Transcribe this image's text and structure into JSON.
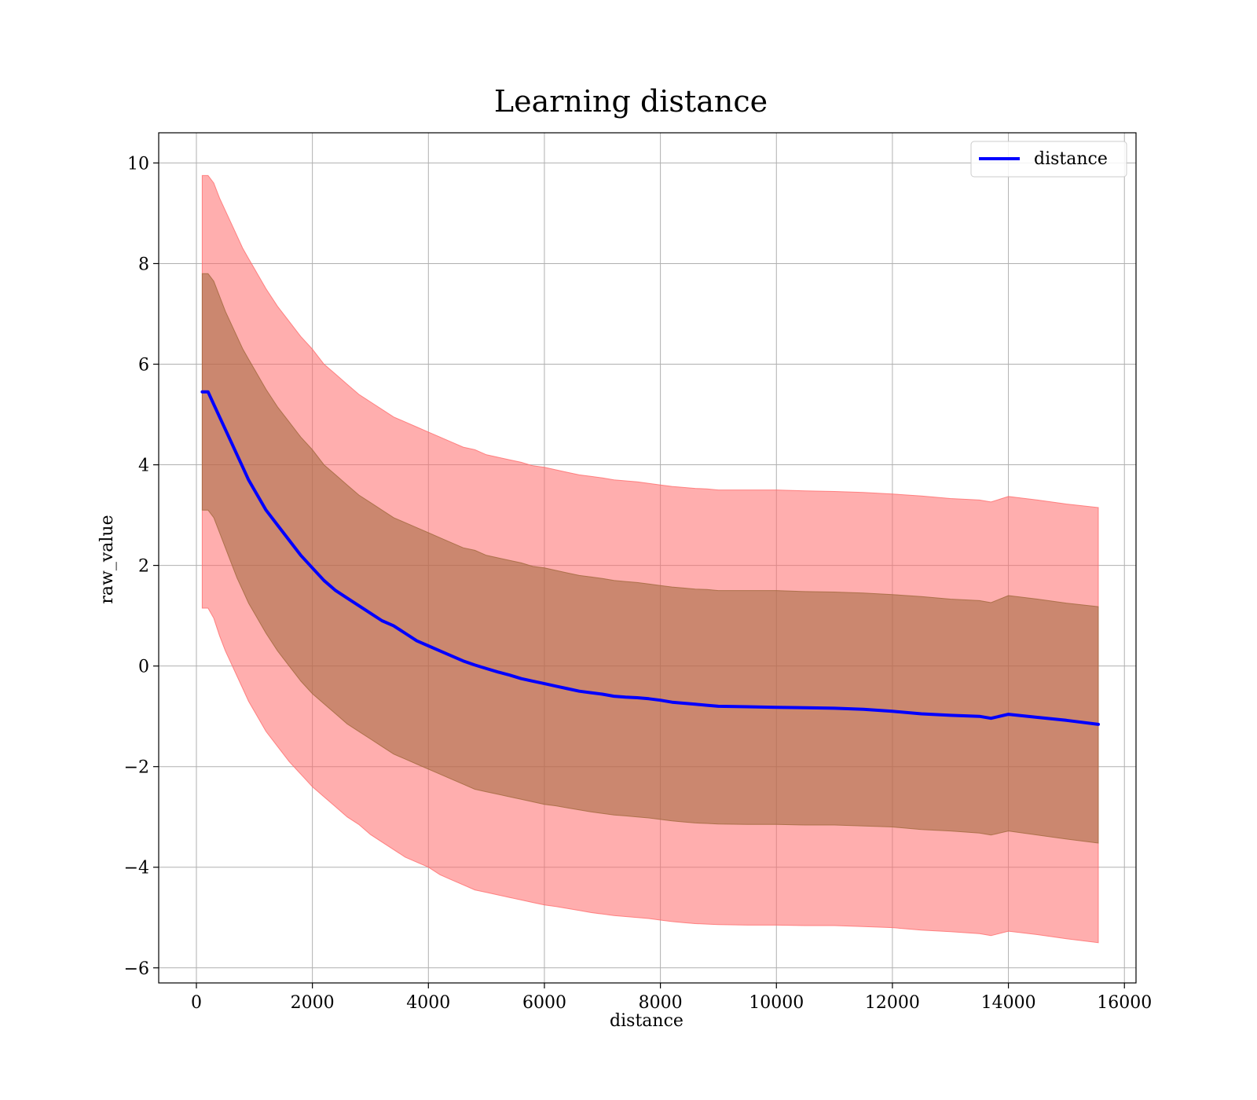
{
  "chart_data": {
    "type": "line",
    "title": "Learning distance",
    "xlabel": "distance",
    "ylabel": "raw_value",
    "xlim": [
      -650,
      16200
    ],
    "ylim": [
      -6.3,
      10.6
    ],
    "xticks": [
      0,
      2000,
      4000,
      6000,
      8000,
      10000,
      12000,
      14000,
      16000
    ],
    "yticks": [
      -6,
      -4,
      -2,
      0,
      2,
      4,
      6,
      8,
      10
    ],
    "xtick_labels": [
      "0",
      "2000",
      "4000",
      "6000",
      "8000",
      "10000",
      "12000",
      "14000",
      "16000"
    ],
    "ytick_labels": [
      "−6",
      "−4",
      "−2",
      "0",
      "2",
      "4",
      "6",
      "8",
      "10"
    ],
    "grid": true,
    "legend": {
      "position": "top-right",
      "entries": [
        "distance"
      ]
    },
    "colors": {
      "line": "#0000ff",
      "outer_band": "#ff6b6b",
      "inner_band": "#a0683c"
    },
    "series": [
      {
        "name": "distance",
        "x": [
          100,
          200,
          300,
          400,
          500,
          600,
          700,
          800,
          900,
          1000,
          1200,
          1400,
          1600,
          1800,
          2000,
          2200,
          2400,
          2600,
          2800,
          3000,
          3200,
          3400,
          3600,
          3800,
          4000,
          4200,
          4400,
          4600,
          4800,
          5000,
          5200,
          5400,
          5600,
          5800,
          6000,
          6200,
          6400,
          6600,
          6800,
          7000,
          7200,
          7400,
          7600,
          7800,
          8000,
          8200,
          8400,
          8600,
          8800,
          9000,
          9500,
          10000,
          10500,
          11000,
          11500,
          12000,
          12500,
          13000,
          13500,
          13700,
          14000,
          14500,
          15000,
          15550
        ],
        "y": [
          5.45,
          5.45,
          5.2,
          4.95,
          4.7,
          4.45,
          4.2,
          3.95,
          3.7,
          3.5,
          3.1,
          2.8,
          2.5,
          2.2,
          1.95,
          1.7,
          1.5,
          1.35,
          1.2,
          1.05,
          0.9,
          0.8,
          0.65,
          0.5,
          0.4,
          0.3,
          0.2,
          0.1,
          0.02,
          -0.05,
          -0.12,
          -0.18,
          -0.25,
          -0.3,
          -0.35,
          -0.4,
          -0.45,
          -0.5,
          -0.53,
          -0.56,
          -0.6,
          -0.62,
          -0.63,
          -0.65,
          -0.68,
          -0.72,
          -0.74,
          -0.76,
          -0.78,
          -0.8,
          -0.81,
          -0.82,
          -0.83,
          -0.84,
          -0.86,
          -0.9,
          -0.95,
          -0.98,
          -1.0,
          -1.04,
          -0.96,
          -1.02,
          -1.08,
          -1.16
        ]
      }
    ],
    "bands": [
      {
        "kind": "outer",
        "lower": [
          1.15,
          1.15,
          0.95,
          0.6,
          0.3,
          0.05,
          -0.2,
          -0.45,
          -0.7,
          -0.9,
          -1.3,
          -1.6,
          -1.9,
          -2.15,
          -2.4,
          -2.6,
          -2.8,
          -3.0,
          -3.15,
          -3.35,
          -3.5,
          -3.65,
          -3.8,
          -3.9,
          -4.0,
          -4.15,
          -4.25,
          -4.35,
          -4.45,
          -4.5,
          -4.55,
          -4.6,
          -4.65,
          -4.7,
          -4.75,
          -4.78,
          -4.82,
          -4.86,
          -4.9,
          -4.93,
          -4.96,
          -4.98,
          -5.0,
          -5.02,
          -5.05,
          -5.08,
          -5.1,
          -5.12,
          -5.13,
          -5.14,
          -5.15,
          -5.15,
          -5.16,
          -5.16,
          -5.18,
          -5.2,
          -5.25,
          -5.28,
          -5.32,
          -5.36,
          -5.27,
          -5.34,
          -5.42,
          -5.5
        ],
        "upper": [
          9.75,
          9.75,
          9.6,
          9.3,
          9.05,
          8.8,
          8.55,
          8.3,
          8.1,
          7.9,
          7.5,
          7.15,
          6.85,
          6.55,
          6.3,
          6.0,
          5.8,
          5.6,
          5.4,
          5.25,
          5.1,
          4.95,
          4.85,
          4.75,
          4.65,
          4.55,
          4.45,
          4.35,
          4.3,
          4.2,
          4.15,
          4.1,
          4.05,
          3.98,
          3.95,
          3.9,
          3.85,
          3.8,
          3.77,
          3.74,
          3.7,
          3.68,
          3.66,
          3.63,
          3.6,
          3.57,
          3.55,
          3.53,
          3.52,
          3.5,
          3.5,
          3.5,
          3.48,
          3.47,
          3.45,
          3.42,
          3.38,
          3.33,
          3.3,
          3.26,
          3.37,
          3.3,
          3.22,
          3.15
        ]
      },
      {
        "kind": "inner",
        "lower": [
          3.1,
          3.1,
          2.95,
          2.65,
          2.35,
          2.05,
          1.75,
          1.5,
          1.25,
          1.05,
          0.65,
          0.3,
          0.0,
          -0.3,
          -0.55,
          -0.75,
          -0.95,
          -1.15,
          -1.3,
          -1.45,
          -1.6,
          -1.75,
          -1.85,
          -1.95,
          -2.05,
          -2.15,
          -2.25,
          -2.35,
          -2.45,
          -2.5,
          -2.55,
          -2.6,
          -2.65,
          -2.7,
          -2.75,
          -2.78,
          -2.82,
          -2.86,
          -2.9,
          -2.93,
          -2.96,
          -2.98,
          -3.0,
          -3.02,
          -3.05,
          -3.08,
          -3.1,
          -3.12,
          -3.13,
          -3.14,
          -3.15,
          -3.15,
          -3.16,
          -3.16,
          -3.18,
          -3.2,
          -3.25,
          -3.28,
          -3.32,
          -3.36,
          -3.28,
          -3.36,
          -3.44,
          -3.52
        ],
        "upper": [
          7.8,
          7.8,
          7.65,
          7.35,
          7.05,
          6.8,
          6.55,
          6.3,
          6.1,
          5.9,
          5.5,
          5.15,
          4.85,
          4.55,
          4.3,
          4.0,
          3.8,
          3.6,
          3.4,
          3.25,
          3.1,
          2.95,
          2.85,
          2.75,
          2.65,
          2.55,
          2.45,
          2.35,
          2.3,
          2.2,
          2.15,
          2.1,
          2.05,
          1.98,
          1.95,
          1.9,
          1.85,
          1.8,
          1.77,
          1.74,
          1.7,
          1.68,
          1.66,
          1.63,
          1.6,
          1.57,
          1.55,
          1.53,
          1.52,
          1.5,
          1.5,
          1.5,
          1.48,
          1.47,
          1.45,
          1.42,
          1.38,
          1.33,
          1.3,
          1.26,
          1.4,
          1.33,
          1.25,
          1.18
        ]
      }
    ]
  }
}
